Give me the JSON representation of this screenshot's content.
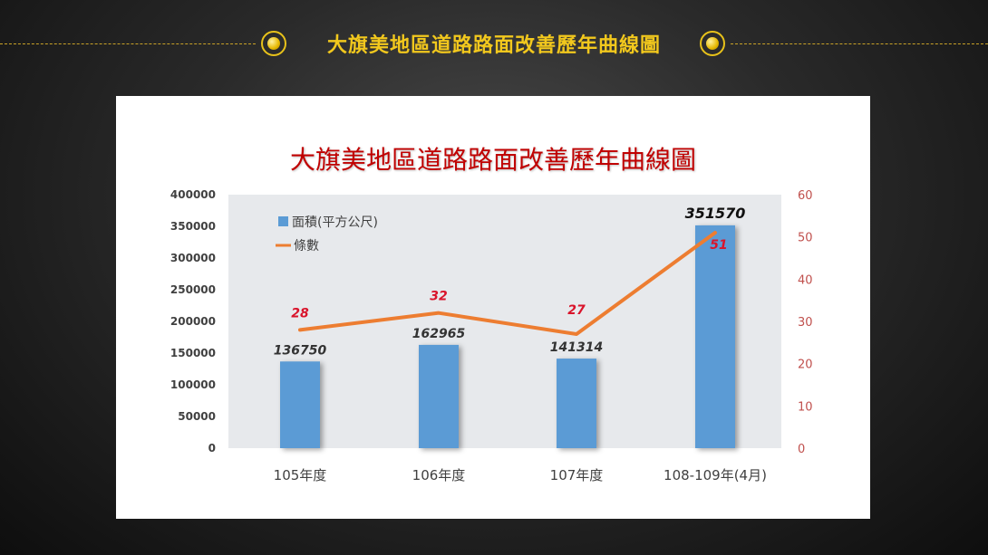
{
  "header": {
    "title": "大旗美地區道路路面改善歷年曲線圖"
  },
  "colors": {
    "bar": "#5b9bd5",
    "line": "#ed7d31",
    "value_label": "#d9142b",
    "header_gold": "#f2c81d"
  },
  "chart_data": {
    "type": "bar",
    "title": "大旗美地區道路路面改善歷年曲線圖",
    "categories": [
      "105年度",
      "106年度",
      "107年度",
      "108-109年(4月)"
    ],
    "series": [
      {
        "name": "面積(平方公尺)",
        "type": "bar",
        "axis": "left",
        "values": [
          136750,
          162965,
          141314,
          351570
        ]
      },
      {
        "name": "條數",
        "type": "line",
        "axis": "right",
        "values": [
          28,
          32,
          27,
          51
        ]
      }
    ],
    "ylim_left": [
      0,
      400000
    ],
    "yticks_left": [
      "0",
      "50000",
      "100000",
      "150000",
      "200000",
      "250000",
      "300000",
      "350000",
      "400000"
    ],
    "ylim_right": [
      0,
      60
    ],
    "yticks_right": [
      "0",
      "10",
      "20",
      "30",
      "40",
      "50",
      "60"
    ],
    "bar_labels": [
      "136750",
      "162965",
      "141314",
      "351570"
    ],
    "line_labels": [
      "28",
      "32",
      "27",
      "51"
    ],
    "legend": {
      "placement": "top-left"
    },
    "grid": false
  }
}
